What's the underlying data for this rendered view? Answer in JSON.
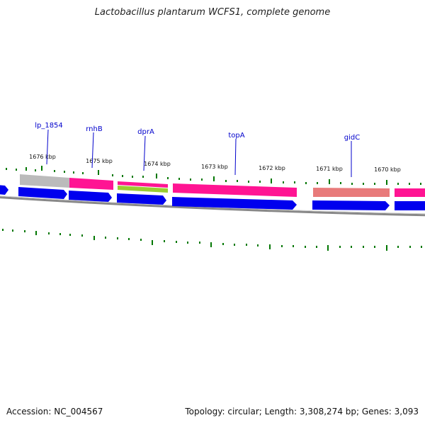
{
  "title": "Lactobacillus plantarum WCFS1, complete genome",
  "footer": {
    "accession": "Accession: NC_004567",
    "summary": "Topology: circular; Length: 3,308,274 bp; Genes: 3,093"
  },
  "colors": {
    "forward_cds": "#0000ee",
    "gene_magenta": "#ff1493",
    "gene_grey": "#bbbbbb",
    "gene_salmon": "#e87a7a",
    "gene_green": "#9acd32",
    "backbone": "#888888",
    "ticks": "#007700",
    "gene_label": "#0000cc"
  },
  "chart_data": {
    "type": "genome_map",
    "units": "kbp",
    "axis_ticks": [
      {
        "label": "1676 kbp"
      },
      {
        "label": "1675 kbp"
      },
      {
        "label": "1674 kbp"
      },
      {
        "label": "1673 kbp"
      },
      {
        "label": "1672 kbp"
      },
      {
        "label": "1671 kbp"
      },
      {
        "label": "1670 kbp"
      }
    ],
    "gene_labels": [
      {
        "name": "lp_1854"
      },
      {
        "name": "rnhB"
      },
      {
        "name": "dprA"
      },
      {
        "name": "topA"
      },
      {
        "name": "gidC"
      }
    ]
  }
}
